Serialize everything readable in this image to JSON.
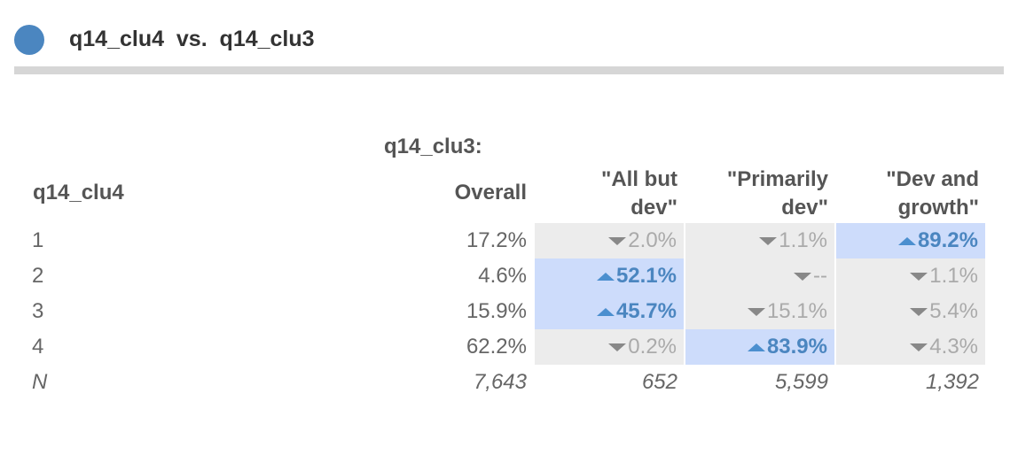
{
  "header": {
    "title": "q14_clu4  vs.  q14_clu3",
    "dot_color": "#4b86c0"
  },
  "chart_data": {
    "type": "table",
    "title": "q14_clu4  vs.  q14_clu3",
    "column_group_label": "q14_clu3:",
    "row_variable": "q14_clu4",
    "columns": [
      "Overall",
      "\"All but dev\"",
      "\"Primarily dev\"",
      "\"Dev and growth\""
    ],
    "rows": [
      {
        "label": "1",
        "cells": [
          {
            "text": "17.2%",
            "sig": "none"
          },
          {
            "text": "2.0%",
            "sig": "down"
          },
          {
            "text": "1.1%",
            "sig": "down"
          },
          {
            "text": "89.2%",
            "sig": "up"
          }
        ]
      },
      {
        "label": "2",
        "cells": [
          {
            "text": "4.6%",
            "sig": "none"
          },
          {
            "text": "52.1%",
            "sig": "up"
          },
          {
            "text": "--",
            "sig": "down"
          },
          {
            "text": "1.1%",
            "sig": "down"
          }
        ]
      },
      {
        "label": "3",
        "cells": [
          {
            "text": "15.9%",
            "sig": "none"
          },
          {
            "text": "45.7%",
            "sig": "up"
          },
          {
            "text": "15.1%",
            "sig": "down"
          },
          {
            "text": "5.4%",
            "sig": "down"
          }
        ]
      },
      {
        "label": "4",
        "cells": [
          {
            "text": "62.2%",
            "sig": "none"
          },
          {
            "text": "0.2%",
            "sig": "down"
          },
          {
            "text": "83.9%",
            "sig": "up"
          },
          {
            "text": "4.3%",
            "sig": "down"
          }
        ]
      }
    ],
    "n_row": {
      "label": "N",
      "cells": [
        "7,643",
        "652",
        "5,599",
        "1,392"
      ]
    },
    "colors": {
      "high_text": "#4b86c0",
      "high_bg": "#cddcfb",
      "low_text": "#aaaaaa",
      "low_bg": "#ececec"
    }
  }
}
